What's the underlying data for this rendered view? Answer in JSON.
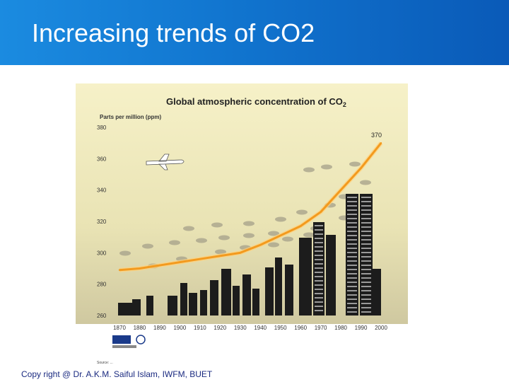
{
  "slide": {
    "title": "Increasing trends of CO2",
    "footer": "Copy right @ Dr. A.K.M. Saiful Islam, IWFM, BUET"
  },
  "colors": {
    "header": "#1175cf",
    "plot_background": "#f3efc8",
    "curve": "#f39a1e",
    "buildings": "#1c1c1c"
  },
  "chart_data": {
    "type": "line",
    "title": "Global atmospheric concentration of CO",
    "title_subscript": "2",
    "ylabel": "Parts per million (ppm)",
    "ylim": [
      260,
      380
    ],
    "xlim": [
      1870,
      2000
    ],
    "yticks": [
      260,
      280,
      300,
      320,
      340,
      360,
      380
    ],
    "xticks": [
      1870,
      1880,
      1890,
      1900,
      1910,
      1920,
      1930,
      1940,
      1950,
      1960,
      1970,
      1980,
      1990,
      2000
    ],
    "grid": false,
    "series": [
      {
        "x": [
          1870,
          1880,
          1890,
          1900,
          1910,
          1920,
          1930,
          1940,
          1950,
          1960,
          1970,
          1980,
          1990,
          2000
        ],
        "values": [
          289,
          290,
          292,
          294,
          296,
          298,
          300,
          305,
          311,
          317,
          326,
          340,
          354,
          370
        ]
      }
    ],
    "annotations": [
      {
        "text": "370",
        "x": 2000,
        "y": 370
      }
    ],
    "source": "Source: ..."
  }
}
